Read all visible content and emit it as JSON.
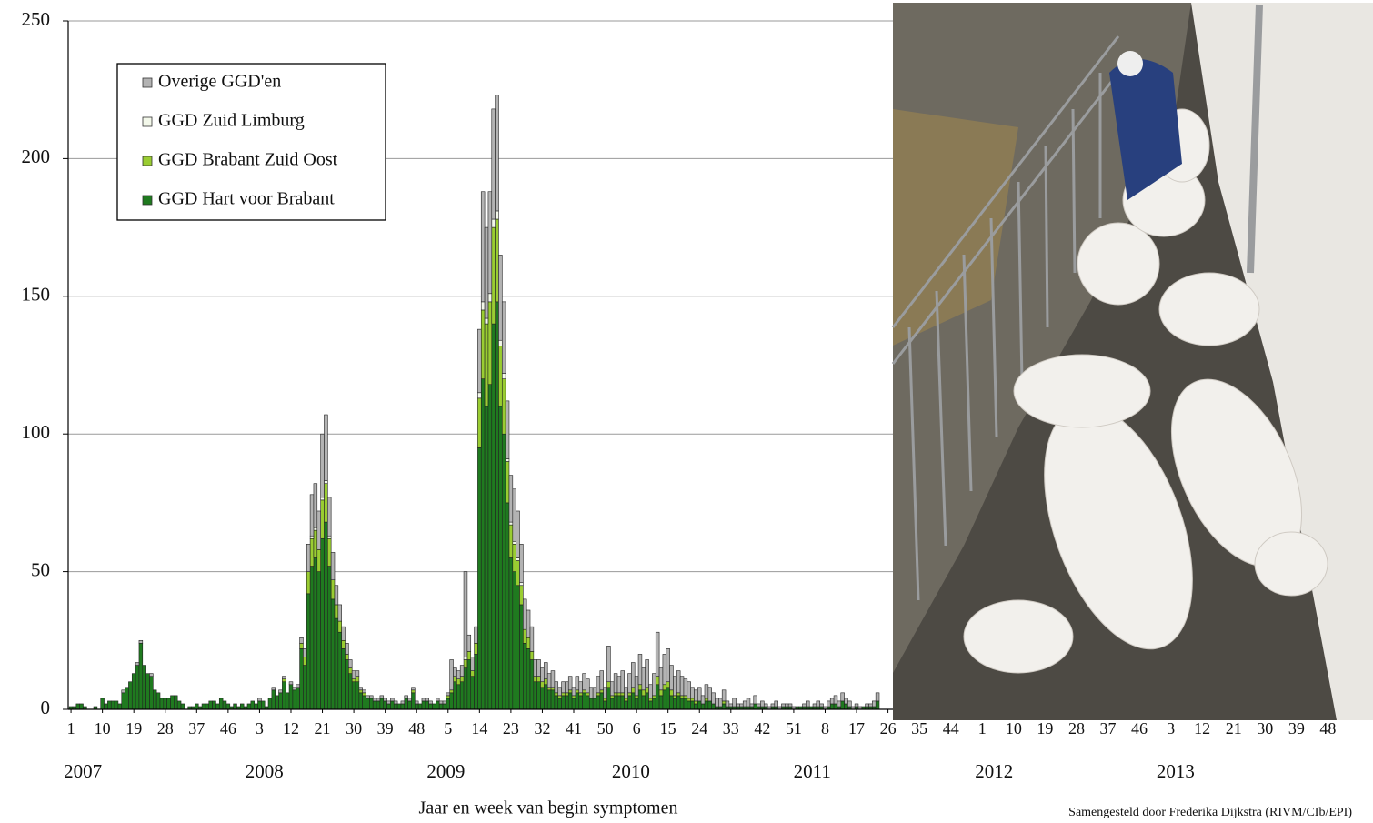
{
  "chart_data": {
    "type": "bar",
    "stacked": true,
    "x_label": "Jaar en week van begin symptomen",
    "source": "Samengesteld door Frederika Dijkstra (RIVM/CIb/EPI)",
    "legend": "upper left",
    "grid": true,
    "ylim": [
      0,
      250
    ],
    "yticks": [
      0,
      50,
      100,
      150,
      200,
      250
    ],
    "xlim": [
      -0.8,
      363.8
    ],
    "xticks": [
      {
        "value": 0,
        "label": "1"
      },
      {
        "value": 9,
        "label": "10"
      },
      {
        "value": 18,
        "label": "19"
      },
      {
        "value": 27,
        "label": "28"
      },
      {
        "value": 36,
        "label": "37"
      },
      {
        "value": 45,
        "label": "46"
      },
      {
        "value": 54,
        "label": "3"
      },
      {
        "value": 63,
        "label": "12"
      },
      {
        "value": 72,
        "label": "21"
      },
      {
        "value": 81,
        "label": "30"
      },
      {
        "value": 90,
        "label": "39"
      },
      {
        "value": 99,
        "label": "48"
      },
      {
        "value": 108,
        "label": "5"
      },
      {
        "value": 117,
        "label": "14"
      },
      {
        "value": 126,
        "label": "23"
      },
      {
        "value": 135,
        "label": "32"
      },
      {
        "value": 144,
        "label": "41"
      },
      {
        "value": 153,
        "label": "50"
      },
      {
        "value": 162,
        "label": "6"
      },
      {
        "value": 171,
        "label": "15"
      },
      {
        "value": 180,
        "label": "24"
      },
      {
        "value": 189,
        "label": "33"
      },
      {
        "value": 198,
        "label": "42"
      },
      {
        "value": 207,
        "label": "51"
      },
      {
        "value": 216,
        "label": "8"
      },
      {
        "value": 225,
        "label": "17"
      },
      {
        "value": 234,
        "label": "26"
      },
      {
        "value": 243,
        "label": "35"
      },
      {
        "value": 252,
        "label": "44"
      },
      {
        "value": 261,
        "label": "1"
      },
      {
        "value": 270,
        "label": "10"
      },
      {
        "value": 279,
        "label": "19"
      },
      {
        "value": 288,
        "label": "28"
      },
      {
        "value": 297,
        "label": "37"
      },
      {
        "value": 306,
        "label": "46"
      },
      {
        "value": 315,
        "label": "3"
      },
      {
        "value": 324,
        "label": "12"
      },
      {
        "value": 333,
        "label": "21"
      },
      {
        "value": 342,
        "label": "30"
      },
      {
        "value": 351,
        "label": "39"
      },
      {
        "value": 360,
        "label": "48"
      }
    ],
    "year_ticks": [
      {
        "value": 0,
        "label": "2007"
      },
      {
        "value": 52,
        "label": "2008"
      },
      {
        "value": 104,
        "label": "2009"
      },
      {
        "value": 157,
        "label": "2010"
      },
      {
        "value": 209,
        "label": "2011"
      },
      {
        "value": 261,
        "label": "2012"
      },
      {
        "value": 313,
        "label": "2013"
      }
    ],
    "x": [
      0,
      1,
      2,
      3,
      4,
      5,
      6,
      7,
      8,
      9,
      10,
      11,
      12,
      13,
      14,
      15,
      16,
      17,
      18,
      19,
      20,
      21,
      22,
      23,
      24,
      25,
      26,
      27,
      28,
      29,
      30,
      31,
      32,
      33,
      34,
      35,
      36,
      37,
      38,
      39,
      40,
      41,
      42,
      43,
      44,
      45,
      46,
      47,
      48,
      49,
      50,
      51,
      52,
      53,
      54,
      55,
      56,
      57,
      58,
      59,
      60,
      61,
      62,
      63,
      64,
      65,
      66,
      67,
      68,
      69,
      70,
      71,
      72,
      73,
      74,
      75,
      76,
      77,
      78,
      79,
      80,
      81,
      82,
      83,
      84,
      85,
      86,
      87,
      88,
      89,
      90,
      91,
      92,
      93,
      94,
      95,
      96,
      97,
      98,
      99,
      100,
      101,
      102,
      103,
      104,
      105,
      106,
      107,
      108,
      109,
      110,
      111,
      112,
      113,
      114,
      115,
      116,
      117,
      118,
      119,
      120,
      121,
      122,
      123,
      124,
      125,
      126,
      127,
      128,
      129,
      130,
      131,
      132,
      133,
      134,
      135,
      136,
      137,
      138,
      139,
      140,
      141,
      142,
      143,
      144,
      145,
      146,
      147,
      148,
      149,
      150,
      151,
      152,
      153,
      154,
      155,
      156,
      157,
      158,
      159,
      160,
      161,
      162,
      163,
      164,
      165,
      166,
      167,
      168,
      169,
      170,
      171,
      172,
      173,
      174,
      175,
      176,
      177,
      178,
      179,
      180,
      181,
      182,
      183,
      184,
      185,
      186,
      187,
      188,
      189,
      190,
      191,
      192,
      193,
      194,
      195,
      196,
      197,
      198,
      199,
      200,
      201,
      202,
      203,
      204,
      205,
      206,
      207,
      208,
      209,
      210,
      211,
      212,
      213,
      214,
      215,
      216,
      217,
      218,
      219,
      220,
      221,
      222,
      223,
      224,
      225,
      226,
      227,
      228,
      229,
      230,
      231
    ],
    "series": [
      {
        "name": "GGD Hart voor Brabant",
        "color": "#1f7a1f",
        "values": [
          1,
          1,
          2,
          2,
          1,
          0,
          0,
          1,
          0,
          4,
          2,
          3,
          3,
          3,
          2,
          6,
          8,
          10,
          13,
          16,
          24,
          16,
          13,
          12,
          7,
          6,
          4,
          4,
          4,
          5,
          5,
          3,
          2,
          0,
          1,
          1,
          2,
          1,
          2,
          2,
          3,
          3,
          2,
          4,
          3,
          2,
          1,
          2,
          1,
          2,
          1,
          2,
          3,
          2,
          3,
          3,
          1,
          4,
          7,
          5,
          6,
          10,
          6,
          9,
          7,
          8,
          22,
          16,
          42,
          52,
          55,
          50,
          62,
          68,
          52,
          40,
          33,
          28,
          22,
          18,
          13,
          10,
          10,
          6,
          5,
          4,
          4,
          3,
          3,
          4,
          3,
          2,
          3,
          2,
          2,
          2,
          4,
          3,
          6,
          2,
          2,
          3,
          3,
          2,
          2,
          3,
          2,
          2,
          4,
          6,
          10,
          9,
          10,
          15,
          18,
          12,
          20,
          95,
          120,
          110,
          118,
          140,
          148,
          110,
          100,
          75,
          55,
          50,
          45,
          38,
          24,
          22,
          18,
          10,
          10,
          8,
          9,
          7,
          7,
          5,
          4,
          5,
          5,
          6,
          4,
          6,
          5,
          6,
          5,
          4,
          4,
          5,
          6,
          3,
          8,
          4,
          5,
          5,
          5,
          3,
          5,
          6,
          4,
          7,
          5,
          6,
          3,
          4,
          9,
          5,
          7,
          8,
          5,
          4,
          5,
          4,
          4,
          3,
          3,
          2,
          3,
          2,
          3,
          3,
          2,
          1,
          1,
          2,
          1,
          1,
          1,
          1,
          1,
          1,
          1,
          1,
          2,
          1,
          1,
          1,
          0,
          1,
          1,
          0,
          1,
          1,
          1,
          0,
          1,
          1,
          1,
          1,
          1,
          1,
          1,
          1,
          0,
          1,
          2,
          2,
          1,
          3,
          2,
          1,
          0,
          1,
          0,
          1,
          1,
          1,
          1,
          3
        ]
      },
      {
        "name": "GGD Brabant Zuid Oost",
        "color": "#9acd32",
        "values": [
          0,
          0,
          0,
          0,
          0,
          0,
          0,
          0,
          0,
          0,
          0,
          0,
          0,
          0,
          0,
          0,
          0,
          0,
          0,
          0,
          0,
          0,
          0,
          0,
          0,
          0,
          0,
          0,
          0,
          0,
          0,
          0,
          0,
          0,
          0,
          0,
          0,
          0,
          0,
          0,
          0,
          0,
          0,
          0,
          0,
          0,
          0,
          0,
          0,
          0,
          0,
          0,
          0,
          0,
          0,
          0,
          0,
          0,
          0,
          0,
          0,
          1,
          0,
          0,
          0,
          0,
          2,
          3,
          8,
          10,
          10,
          8,
          14,
          14,
          10,
          7,
          5,
          4,
          3,
          2,
          2,
          1,
          2,
          1,
          1,
          0,
          0,
          0,
          0,
          0,
          0,
          0,
          0,
          0,
          0,
          0,
          0,
          0,
          1,
          0,
          0,
          0,
          0,
          0,
          0,
          0,
          0,
          0,
          1,
          1,
          2,
          2,
          2,
          3,
          3,
          2,
          4,
          18,
          25,
          30,
          30,
          35,
          30,
          22,
          20,
          15,
          12,
          10,
          9,
          7,
          5,
          4,
          3,
          2,
          2,
          2,
          2,
          1,
          1,
          1,
          1,
          1,
          1,
          1,
          1,
          1,
          1,
          1,
          1,
          0,
          0,
          1,
          1,
          1,
          2,
          1,
          1,
          1,
          1,
          1,
          1,
          2,
          1,
          2,
          2,
          2,
          1,
          1,
          3,
          2,
          2,
          2,
          2,
          1,
          1,
          1,
          1,
          1,
          1,
          1,
          0,
          0,
          1,
          0,
          0,
          0,
          0,
          1,
          0,
          0,
          0,
          0,
          0,
          0,
          0,
          0,
          0,
          0,
          0,
          0,
          0,
          0,
          0,
          0,
          0,
          0,
          0,
          0,
          0,
          0,
          0,
          0,
          0,
          0,
          0,
          0,
          0,
          0,
          0,
          0,
          0,
          0,
          0,
          0,
          0,
          0,
          0,
          0,
          0,
          0,
          0,
          0
        ]
      },
      {
        "name": "GGD Zuid Limburg",
        "color": "#f3f8ea",
        "values": [
          0,
          0,
          0,
          0,
          0,
          0,
          0,
          0,
          0,
          0,
          0,
          0,
          0,
          0,
          0,
          0,
          0,
          0,
          0,
          0,
          0,
          0,
          0,
          0,
          0,
          0,
          0,
          0,
          0,
          0,
          0,
          0,
          0,
          0,
          0,
          0,
          0,
          0,
          0,
          0,
          0,
          0,
          0,
          0,
          0,
          0,
          0,
          0,
          0,
          0,
          0,
          0,
          0,
          0,
          0,
          0,
          0,
          0,
          0,
          0,
          0,
          0,
          0,
          0,
          0,
          0,
          0,
          0,
          0,
          1,
          1,
          0,
          1,
          1,
          1,
          0,
          0,
          0,
          0,
          0,
          0,
          0,
          0,
          0,
          0,
          0,
          0,
          0,
          0,
          0,
          0,
          0,
          0,
          0,
          0,
          0,
          0,
          0,
          0,
          0,
          0,
          0,
          0,
          0,
          0,
          0,
          0,
          0,
          0,
          0,
          0,
          0,
          0,
          1,
          0,
          0,
          0,
          2,
          3,
          2,
          3,
          3,
          3,
          2,
          2,
          1,
          1,
          1,
          1,
          1,
          0,
          0,
          0,
          0,
          0,
          0,
          0,
          0,
          0,
          0,
          0,
          0,
          0,
          0,
          0,
          0,
          0,
          0,
          0,
          0,
          0,
          0,
          0,
          0,
          0,
          0,
          0,
          0,
          0,
          0,
          0,
          0,
          0,
          0,
          0,
          0,
          0,
          0,
          0,
          0,
          0,
          0,
          0,
          0,
          0,
          0,
          0,
          0,
          0,
          0,
          0,
          0,
          0,
          0,
          0,
          0,
          0,
          0,
          0,
          0,
          0,
          0,
          0,
          0,
          0,
          0,
          0,
          0,
          0,
          0,
          0,
          0,
          0,
          0,
          0,
          0,
          0,
          0,
          0,
          0,
          0,
          0,
          0,
          0,
          0,
          0,
          0,
          0,
          0,
          0,
          0,
          0,
          0,
          0,
          0,
          0,
          0,
          0,
          0,
          0,
          0,
          0
        ]
      },
      {
        "name": "Overige GGD'en",
        "color": "#b3b3b3",
        "values": [
          0,
          0,
          0,
          0,
          0,
          0,
          0,
          0,
          0,
          0,
          0,
          0,
          0,
          0,
          0,
          1,
          0,
          0,
          0,
          1,
          1,
          0,
          0,
          1,
          0,
          0,
          0,
          0,
          0,
          0,
          0,
          0,
          0,
          0,
          0,
          0,
          0,
          0,
          0,
          0,
          0,
          0,
          0,
          0,
          0,
          0,
          0,
          0,
          0,
          0,
          0,
          0,
          0,
          0,
          1,
          0,
          0,
          0,
          1,
          0,
          1,
          1,
          0,
          1,
          1,
          1,
          2,
          3,
          10,
          15,
          16,
          14,
          23,
          24,
          14,
          10,
          7,
          6,
          5,
          4,
          3,
          3,
          2,
          1,
          1,
          1,
          1,
          1,
          1,
          1,
          1,
          1,
          1,
          1,
          0,
          1,
          1,
          1,
          1,
          1,
          0,
          1,
          1,
          1,
          0,
          1,
          1,
          1,
          1,
          11,
          3,
          3,
          4,
          31,
          6,
          5,
          6,
          23,
          40,
          33,
          37,
          40,
          42,
          31,
          26,
          21,
          17,
          19,
          17,
          14,
          11,
          10,
          9,
          6,
          6,
          5,
          6,
          5,
          6,
          4,
          3,
          4,
          4,
          5,
          3,
          5,
          4,
          6,
          5,
          4,
          4,
          6,
          7,
          4,
          13,
          5,
          7,
          6,
          8,
          4,
          7,
          9,
          7,
          11,
          8,
          10,
          5,
          8,
          16,
          8,
          11,
          12,
          9,
          7,
          8,
          7,
          6,
          6,
          4,
          4,
          5,
          3,
          5,
          5,
          4,
          3,
          3,
          4,
          2,
          1,
          3,
          1,
          1,
          2,
          3,
          1,
          3,
          1,
          2,
          1,
          1,
          1,
          2,
          1,
          1,
          1,
          1,
          1,
          0,
          0,
          1,
          2,
          0,
          1,
          2,
          1,
          1,
          2,
          2,
          3,
          2,
          3,
          2,
          2,
          1,
          1,
          1,
          0,
          1,
          1,
          2,
          3
        ]
      }
    ]
  }
}
